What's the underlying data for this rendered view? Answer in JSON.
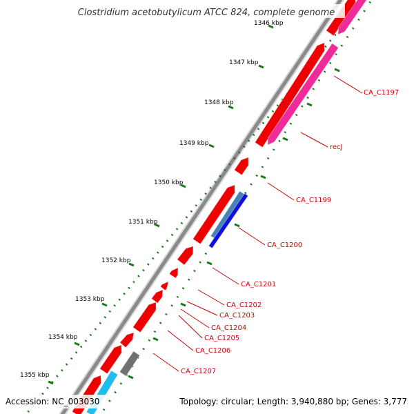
{
  "title": "Clostridium acetobutylicum ATCC 824, complete genome",
  "accession": "Accession: NC_003030",
  "topology": "Topology: circular; Length: 3,940,880 bp; Genes: 3,777",
  "ticks": [
    "1346 kbp",
    "1347 kbp",
    "1348 kbp",
    "1349 kbp",
    "1350 kbp",
    "1351 kbp",
    "1352 kbp",
    "1353 kbp",
    "1354 kbp",
    "1355 kbp"
  ],
  "gene_labels": [
    "CA_C1197",
    "recJ",
    "CA_C1199",
    "CA_C1200",
    "CA_C1201",
    "CA_C1202",
    "CA_C1203",
    "CA_C1204",
    "CA_C1205",
    "CA_C1206",
    "CA_C1207"
  ],
  "colors": {
    "backbone": "#8a8a8a",
    "forward_cds": "#ee0000",
    "reverse_cds": "#ee2b99",
    "blue_feature": "#1010dd",
    "steel_feature": "#4682b4",
    "grey_feature": "#707070",
    "cyan_feature": "#22bbee",
    "tick_green": "#1a7a1a",
    "label_red": "#cc0000"
  }
}
